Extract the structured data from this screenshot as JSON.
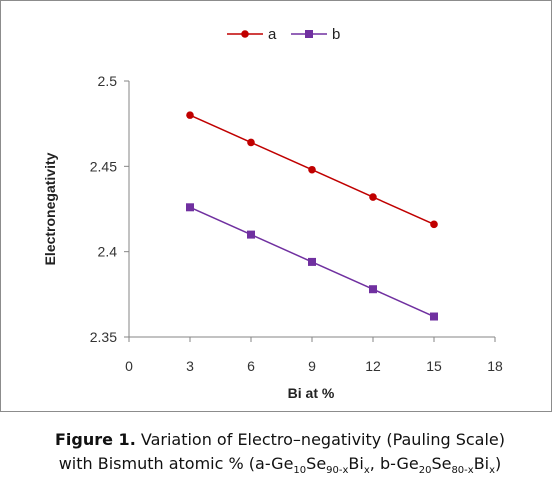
{
  "chart_data": {
    "type": "line",
    "x": [
      3,
      6,
      9,
      12,
      15
    ],
    "series": [
      {
        "name": "a",
        "values": [
          2.48,
          2.464,
          2.448,
          2.432,
          2.416
        ],
        "color": "#c00000",
        "marker": "circle"
      },
      {
        "name": "b",
        "values": [
          2.426,
          2.41,
          2.394,
          2.378,
          2.362
        ],
        "color": "#7030a0",
        "marker": "square"
      }
    ],
    "xlabel": "Bi at %",
    "ylabel": "Electronegativity",
    "xlim": [
      0,
      18
    ],
    "ylim": [
      2.35,
      2.5
    ],
    "x_ticks": [
      "0",
      "3",
      "6",
      "9",
      "12",
      "15",
      "18"
    ],
    "y_ticks": [
      "2.35",
      "2.4",
      "2.45",
      "2.5"
    ],
    "grid": false,
    "legend_position": "top"
  },
  "caption": {
    "label": "Figure 1.",
    "line1_text": "Variation of Electro–negativity (Pauling Scale)",
    "line2_parts": [
      {
        "t": "with Bismuth atomic % (a-Ge"
      },
      {
        "t": "10",
        "sub": true
      },
      {
        "t": "Se"
      },
      {
        "t": "90-x",
        "sub": true
      },
      {
        "t": "Bi"
      },
      {
        "t": "x",
        "sub": true
      },
      {
        "t": ", b-Ge"
      },
      {
        "t": "20",
        "sub": true
      },
      {
        "t": "Se"
      },
      {
        "t": "80-x",
        "sub": true
      },
      {
        "t": "Bi"
      },
      {
        "t": "x",
        "sub": true
      },
      {
        "t": ")"
      }
    ]
  }
}
